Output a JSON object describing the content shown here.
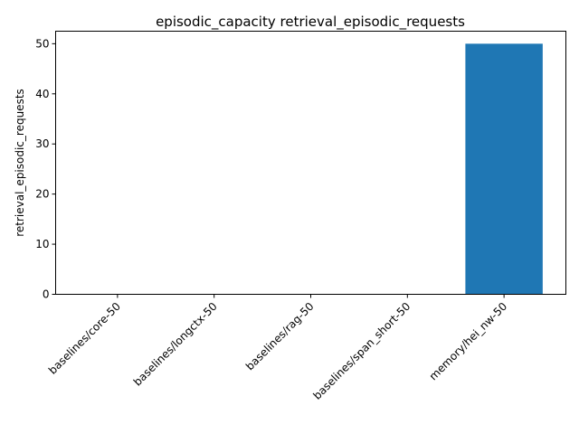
{
  "chart_data": {
    "type": "bar",
    "title": "episodic_capacity retrieval_episodic_requests",
    "xlabel": "",
    "ylabel": "retrieval_episodic_requests",
    "categories": [
      "baselines/core-50",
      "baselines/longctx-50",
      "baselines/rag-50",
      "baselines/span_short-50",
      "memory/hei_nw-50"
    ],
    "values": [
      0,
      0,
      0,
      0,
      50
    ],
    "ylim": [
      0,
      52.5
    ],
    "yticks": [
      0,
      10,
      20,
      30,
      40,
      50
    ],
    "grid": false,
    "bar_color": "#1f77b4"
  }
}
